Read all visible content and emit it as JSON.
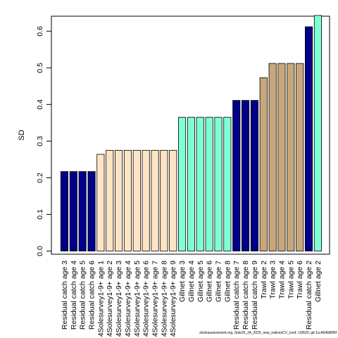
{
  "chart_data": {
    "type": "bar",
    "ylabel": "SD",
    "ylim": [
      0,
      0.64
    ],
    "yticks": [
      "0.0",
      "0.1",
      "0.2",
      "0.3",
      "0.4",
      "0.5",
      "0.6"
    ],
    "grid": false,
    "categories": [
      "Residual catch age 3",
      "Residual catch age 4",
      "Residual catch age 5",
      "Residual catch age 6",
      "4Solesurvey1-9+ age 1",
      "4Solesurvey1-9+ age 2",
      "4Solesurvey1-9+ age 3",
      "4Solesurvey1-9+ age 4",
      "4Solesurvey1-9+ age 5",
      "4Solesurvey1-9+ age 6",
      "4Solesurvey1-9+ age 7",
      "4Solesurvey1-9+ age 8",
      "4Solesurvey1-9+ age 9",
      "Gillnet age 3",
      "Gillnet age 4",
      "Gillnet age 5",
      "Gillnet age 6",
      "Gillnet age 7",
      "Gillnet age 8",
      "Residual catch age 7",
      "Residual catch age 8",
      "Residual catch age 9",
      "Trawl age 2",
      "Trawl age 3",
      "Trawl age 4",
      "Trawl age 5",
      "Trawl age 6",
      "Residual catch age 2",
      "Gillnet age 2"
    ],
    "values": [
      0.217,
      0.217,
      0.217,
      0.217,
      0.264,
      0.275,
      0.275,
      0.275,
      0.275,
      0.275,
      0.275,
      0.275,
      0.275,
      0.365,
      0.365,
      0.365,
      0.365,
      0.365,
      0.365,
      0.411,
      0.411,
      0.411,
      0.473,
      0.512,
      0.512,
      0.512,
      0.512,
      0.612,
      0.643
    ],
    "colors": [
      "#00008B",
      "#00008B",
      "#00008B",
      "#00008B",
      "#FFE4C4",
      "#FFE4C4",
      "#FFE4C4",
      "#FFE4C4",
      "#FFE4C4",
      "#FFE4C4",
      "#FFE4C4",
      "#FFE4C4",
      "#FFE4C4",
      "#7FFFD4",
      "#7FFFD4",
      "#7FFFD4",
      "#7FFFD4",
      "#7FFFD4",
      "#7FFFD4",
      "#00008B",
      "#00008B",
      "#00008B",
      "#C8A77B",
      "#C8A77B",
      "#C8A77B",
      "#C8A77B",
      "#C8A77B",
      "#00008B",
      "#7FFFD4"
    ]
  },
  "footer": "stockassessment.org, Sole20_24_2025_new_indicesCV_conf, r19520, git:1cc464b80f6f"
}
